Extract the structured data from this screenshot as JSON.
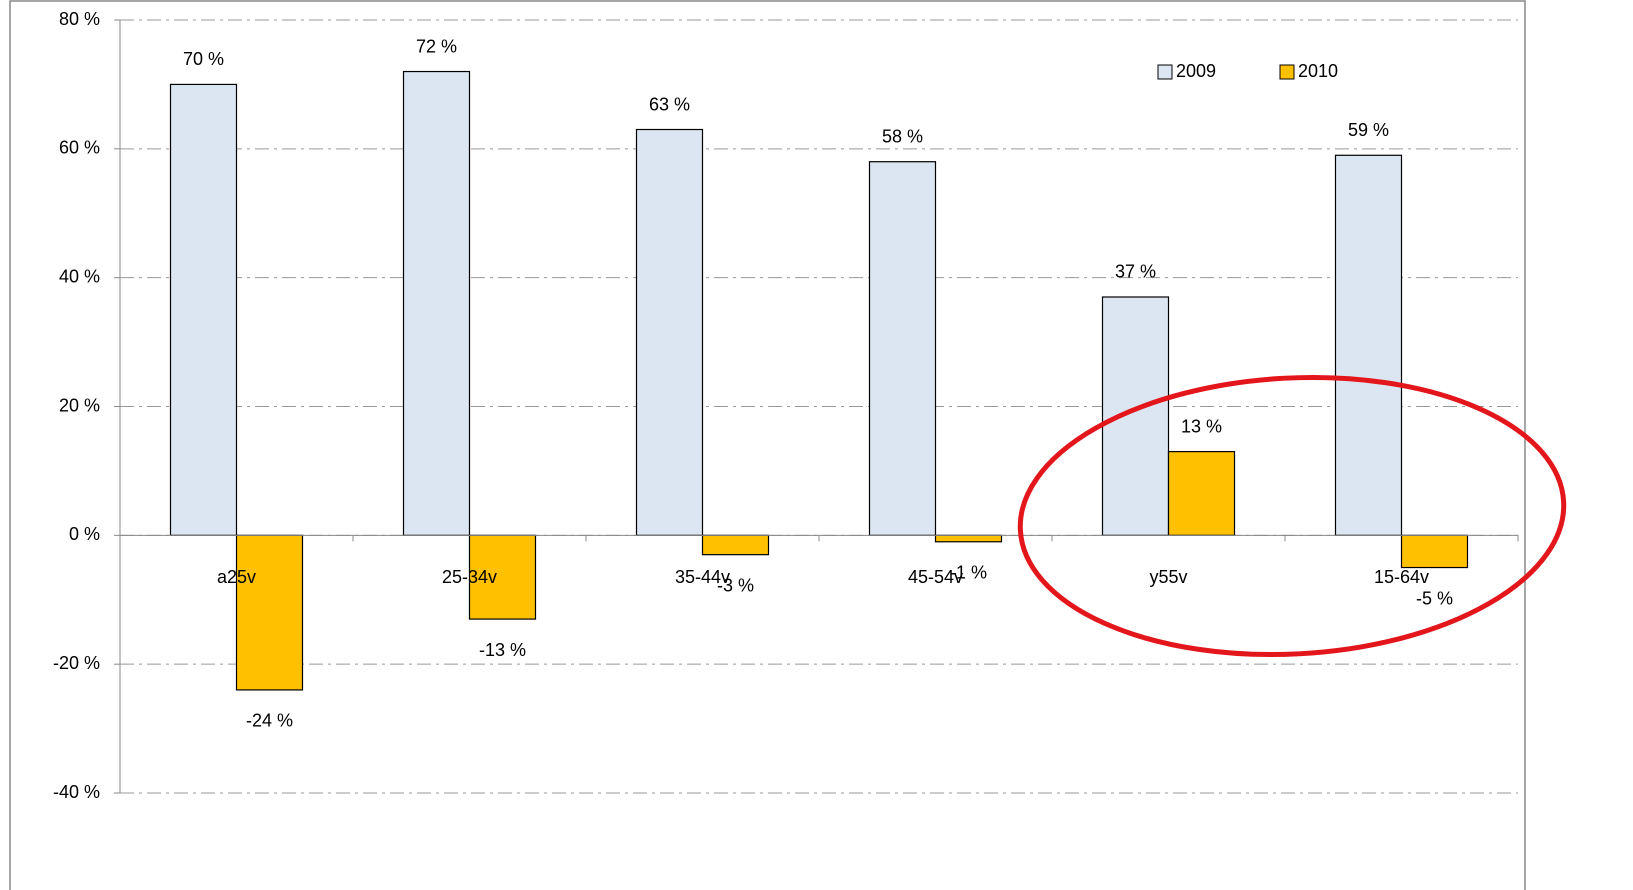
{
  "chart_data": {
    "type": "bar",
    "categories": [
      "a25v",
      "25-34v",
      "35-44v",
      "45-54v",
      "y55v",
      "15-64v"
    ],
    "series": [
      {
        "name": "2009",
        "color": "#dce6f2",
        "values": [
          70,
          72,
          63,
          58,
          37,
          59
        ],
        "value_labels": [
          "70 %",
          "72 %",
          "63 %",
          "58 %",
          "37 %",
          "59 %"
        ]
      },
      {
        "name": "2010",
        "color": "#ffc000",
        "values": [
          -24,
          -13,
          -3,
          -1,
          13,
          -5
        ],
        "value_labels": [
          "-24 %",
          "-13 %",
          "-3 %",
          "-1 %",
          "13 %",
          "-5 %"
        ]
      }
    ],
    "ylim": [
      -40,
      80
    ],
    "yticks": [
      {
        "value": -40,
        "label": "-40 %"
      },
      {
        "value": -20,
        "label": "-20 %"
      },
      {
        "value": 0,
        "label": "0 %"
      },
      {
        "value": 20,
        "label": "20 %"
      },
      {
        "value": 40,
        "label": "40 %"
      },
      {
        "value": 60,
        "label": "60 %"
      },
      {
        "value": 80,
        "label": "80 %"
      }
    ],
    "grid": true,
    "legend": "upper right"
  }
}
